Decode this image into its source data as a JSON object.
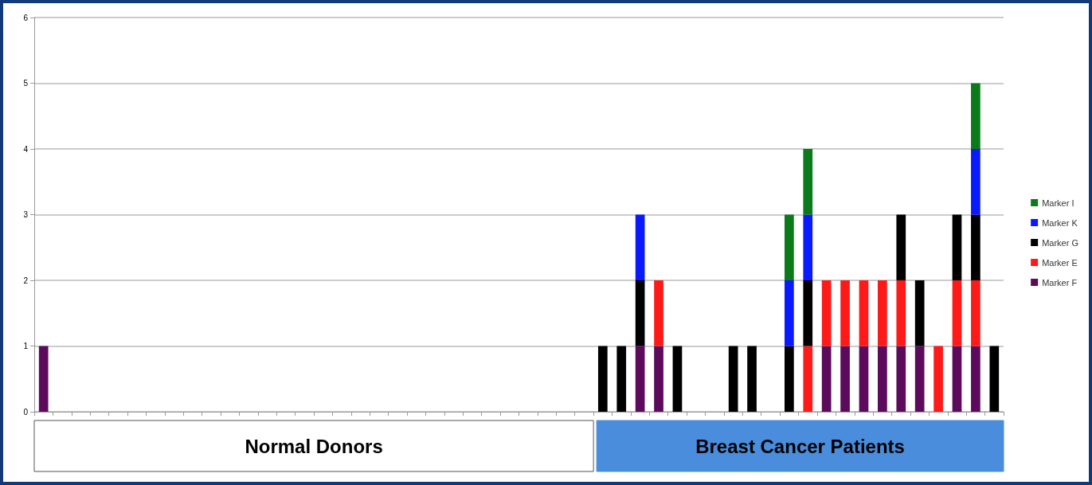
{
  "chart_data": {
    "type": "bar",
    "stacked": true,
    "categories": [
      null,
      null,
      null,
      null,
      null,
      null,
      null,
      null,
      null,
      null,
      null,
      null,
      null,
      null,
      null,
      null,
      null,
      null,
      null,
      null,
      null,
      null,
      null,
      null,
      null,
      null,
      null,
      null,
      null,
      null,
      null,
      null,
      null,
      null,
      null,
      null,
      null,
      null,
      null,
      null,
      null,
      null,
      null,
      null,
      null,
      null,
      null,
      null,
      null,
      null,
      null,
      null
    ],
    "series": [
      {
        "name": "Marker F",
        "color": "#5c0a5c",
        "values": [
          1,
          null,
          null,
          null,
          null,
          null,
          null,
          null,
          null,
          null,
          null,
          null,
          null,
          null,
          null,
          null,
          null,
          null,
          null,
          null,
          null,
          null,
          null,
          null,
          null,
          null,
          null,
          null,
          null,
          null,
          null,
          null,
          1,
          1,
          null,
          null,
          null,
          null,
          null,
          null,
          null,
          null,
          1,
          1,
          1,
          1,
          1,
          1,
          null,
          1,
          1,
          null
        ]
      },
      {
        "name": "Marker E",
        "color": "#ff1a1a",
        "values": [
          null,
          null,
          null,
          null,
          null,
          null,
          null,
          null,
          null,
          null,
          null,
          null,
          null,
          null,
          null,
          null,
          null,
          null,
          null,
          null,
          null,
          null,
          null,
          null,
          null,
          null,
          null,
          null,
          null,
          null,
          null,
          null,
          null,
          1,
          null,
          null,
          null,
          null,
          null,
          null,
          null,
          1,
          1,
          1,
          1,
          1,
          1,
          null,
          1,
          1,
          1,
          null
        ]
      },
      {
        "name": "Marker G",
        "color": "#000000",
        "values": [
          null,
          null,
          null,
          null,
          null,
          null,
          null,
          null,
          null,
          null,
          null,
          null,
          null,
          null,
          null,
          null,
          null,
          null,
          null,
          null,
          null,
          null,
          null,
          null,
          null,
          null,
          null,
          null,
          null,
          null,
          1,
          1,
          1,
          null,
          1,
          null,
          null,
          1,
          1,
          null,
          1,
          1,
          null,
          null,
          null,
          null,
          1,
          1,
          null,
          1,
          1,
          1
        ]
      },
      {
        "name": "Marker K",
        "color": "#0a1aff",
        "values": [
          null,
          null,
          null,
          null,
          null,
          null,
          null,
          null,
          null,
          null,
          null,
          null,
          null,
          null,
          null,
          null,
          null,
          null,
          null,
          null,
          null,
          null,
          null,
          null,
          null,
          null,
          null,
          null,
          null,
          null,
          null,
          null,
          1,
          null,
          null,
          null,
          null,
          null,
          null,
          null,
          1,
          1,
          null,
          null,
          null,
          null,
          null,
          null,
          null,
          null,
          1,
          null
        ]
      },
      {
        "name": "Marker I",
        "color": "#0a7a1a",
        "values": [
          null,
          null,
          null,
          null,
          null,
          null,
          null,
          null,
          null,
          null,
          null,
          null,
          null,
          null,
          null,
          null,
          null,
          null,
          null,
          null,
          null,
          null,
          null,
          null,
          null,
          null,
          null,
          null,
          null,
          null,
          null,
          null,
          null,
          null,
          null,
          null,
          null,
          null,
          null,
          null,
          1,
          1,
          null,
          null,
          null,
          null,
          null,
          null,
          null,
          null,
          1,
          null
        ]
      }
    ],
    "ylim": [
      0,
      6
    ],
    "yticks": [
      0,
      1,
      2,
      3,
      4,
      5,
      6
    ],
    "grid": "y",
    "legend": "right",
    "annotations": [
      "Normal Donors",
      "Breast Cancer Patients"
    ]
  }
}
